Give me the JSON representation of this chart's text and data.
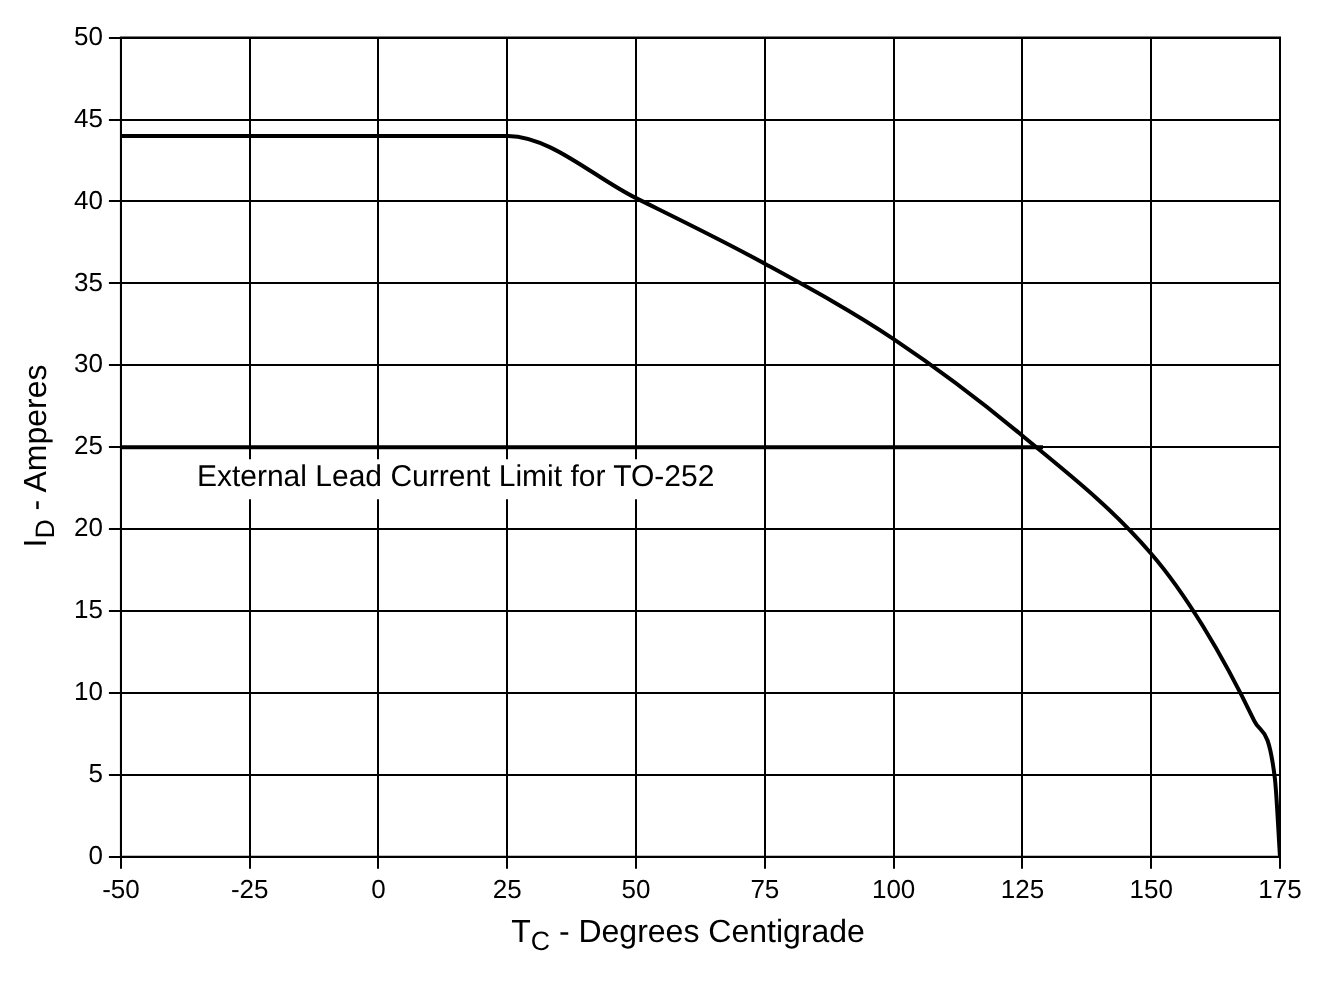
{
  "chart_data": {
    "type": "line",
    "xlabel": "T$_{C}$ - Degrees Centigrade",
    "ylabel": "I$_{D}$ - Amperes",
    "xlim": [
      -50,
      175
    ],
    "xticks": [
      -50,
      -25,
      0,
      25,
      50,
      75,
      100,
      125,
      150,
      175
    ],
    "ylim": [
      0,
      50
    ],
    "yticks": [
      0,
      5,
      10,
      15,
      20,
      25,
      30,
      35,
      40,
      45,
      50
    ],
    "grid": true,
    "legend": false,
    "marker": "none",
    "line_style": "solid",
    "series": [
      {
        "color": "#000000",
        "x": [
          -50,
          25,
          50,
          75,
          100,
          125,
          150,
          160,
          170,
          174,
          175
        ],
        "values": [
          44,
          44,
          40.2,
          36.2,
          31.6,
          25.7,
          18.5,
          14.1,
          8.3,
          4.8,
          0
        ]
      },
      {
        "name": "External Lead Current Limit for TO-252",
        "color": "#000000",
        "x": [
          -50,
          129
        ],
        "values": [
          25,
          25
        ]
      }
    ]
  }
}
